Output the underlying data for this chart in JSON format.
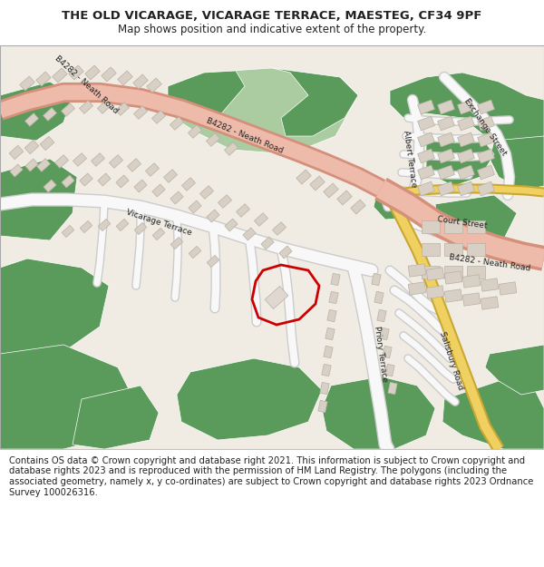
{
  "title": "THE OLD VICARAGE, VICARAGE TERRACE, MAESTEG, CF34 9PF",
  "subtitle": "Map shows position and indicative extent of the property.",
  "footer": "Contains OS data © Crown copyright and database right 2021. This information is subject to Crown copyright and database rights 2023 and is reproduced with the permission of HM Land Registry. The polygons (including the associated geometry, namely x, y co-ordinates) are subject to Crown copyright and database rights 2023 Ordnance Survey 100026316.",
  "title_fontsize": 9.5,
  "subtitle_fontsize": 8.5,
  "footer_fontsize": 7.2,
  "map_bg": "#f0ece4",
  "green_dark": "#5a9a5a",
  "green_light": "#aacca0",
  "road_salmon_outer": "#d4907a",
  "road_salmon_inner": "#eebbaa",
  "road_yellow_outer": "#c8a830",
  "road_yellow_inner": "#f0d060",
  "building_fill": "#d8d0c4",
  "building_edge": "#b8b0a4",
  "white": "#ffffff",
  "near_white": "#f8f8f8",
  "red_polygon": "#cc0000",
  "text_color": "#222222",
  "border_color": "#aaaaaa",
  "fig_width": 6.0,
  "fig_height": 6.25,
  "dpi": 100
}
